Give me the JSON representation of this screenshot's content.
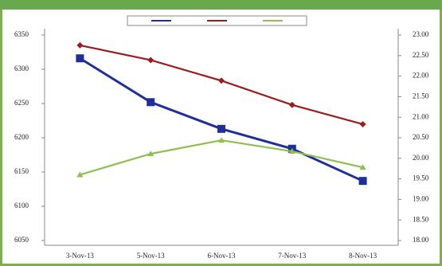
{
  "chart_data": {
    "type": "line",
    "categories": [
      "3-Nov-13",
      "5-Nov-13",
      "6-Nov-13",
      "7-Nov-13",
      "8-Nov-13"
    ],
    "series": [
      {
        "color": "#1f2f9a",
        "marker": "square",
        "values": [
          6316,
          6252,
          6213,
          6184,
          6137
        ]
      },
      {
        "color": "#9b1c1c",
        "marker": "diamond",
        "axis": "y2",
        "values": [
          22.75,
          22.39,
          21.89,
          21.3,
          20.83
        ]
      },
      {
        "color": "#8fbf4f",
        "marker": "triangle",
        "axis": "y2",
        "values": [
          19.6,
          20.11,
          20.44,
          20.17,
          19.78
        ]
      }
    ],
    "ylim": [
      6050,
      6350
    ],
    "yticks": [
      6050,
      6100,
      6150,
      6200,
      6250,
      6300,
      6350
    ],
    "y2lim": [
      18,
      23
    ],
    "y2ticks": [
      {
        "value": 18,
        "label": "18.00"
      },
      {
        "value": 18.5,
        "label": "18.50"
      },
      {
        "value": 19,
        "label": "19.00"
      },
      {
        "value": 19.5,
        "label": "19.50"
      },
      {
        "value": 20,
        "label": "20.00"
      },
      {
        "value": 20.5,
        "label": "20.50"
      },
      {
        "value": 21,
        "label": "21.00"
      },
      {
        "value": 21.5,
        "label": "21.50"
      },
      {
        "value": 22,
        "label": "22.00"
      },
      {
        "value": 22.5,
        "label": "22.50"
      },
      {
        "value": 23,
        "label": "23.00"
      }
    ],
    "grid": false
  }
}
